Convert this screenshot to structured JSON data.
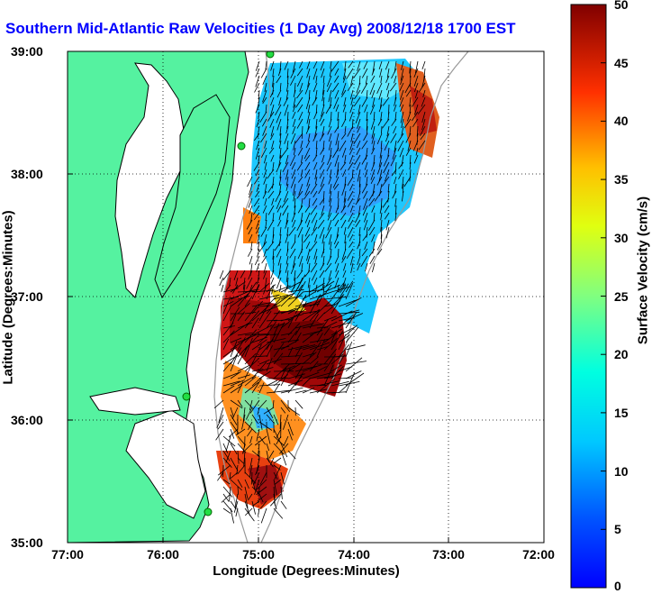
{
  "title": "Southern Mid-Atlantic Raw Velocities (1 Day Avg) 2008/12/18 1700 EST",
  "map": {
    "xlabel": "Longitude (Degrees:Minutes)",
    "ylabel": "Latitude (Degrees:Minutes)",
    "xticks": [
      "77:00",
      "76:00",
      "75:00",
      "74:00",
      "73:00",
      "72:00"
    ],
    "yticks": [
      "39:00",
      "38:00",
      "37:00",
      "36:00",
      "35:00"
    ],
    "land_color": "#55f2a0",
    "grid": true
  },
  "colorbar": {
    "label": "Surface Velocity (cm/s)",
    "ticks": [
      "50",
      "45",
      "40",
      "35",
      "30",
      "25",
      "20",
      "15",
      "10",
      "5",
      "0"
    ],
    "min": 0,
    "max": 50,
    "colormap": "jet"
  },
  "chart_data": {
    "type": "heatmap",
    "title": "Southern Mid-Atlantic Raw Velocities (1 Day Avg) 2008/12/18 1700 EST",
    "xlabel": "Longitude (Degrees:Minutes)",
    "ylabel": "Latitude (Degrees:Minutes)",
    "xlim": [
      -77,
      -72
    ],
    "ylim": [
      35,
      39
    ],
    "value_range": [
      0,
      50
    ],
    "units": "cm/s"
  }
}
